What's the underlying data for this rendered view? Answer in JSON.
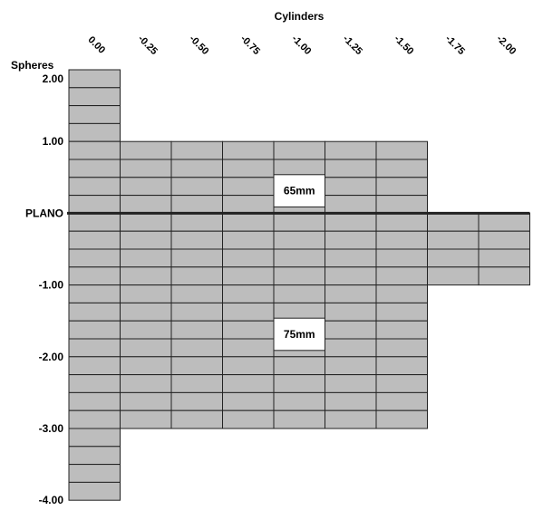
{
  "chart_data": {
    "type": "table",
    "title": "",
    "xlabel": "Cylinders",
    "ylabel": "Spheres",
    "cylinders": [
      "0.00",
      "-0.25",
      "-0.50",
      "-0.75",
      "-1.00",
      "-1.25",
      "-1.50",
      "-1.75",
      "-2.00"
    ],
    "sphere_labels": [
      "2.00",
      "1.00",
      "PLANO",
      "-1.00",
      "-2.00",
      "-3.00",
      "-4.00"
    ],
    "sphere_step": 0.25,
    "sphere_range": [
      -4.0,
      2.0
    ],
    "plano_line": 0.0,
    "availability": [
      {
        "cylinder": "0.00",
        "sphere_from": 2.0,
        "sphere_to": -4.0
      },
      {
        "cylinder": "-0.25",
        "sphere_from": 1.0,
        "sphere_to": -3.0
      },
      {
        "cylinder": "-0.50",
        "sphere_from": 1.0,
        "sphere_to": -3.0
      },
      {
        "cylinder": "-0.75",
        "sphere_from": 1.0,
        "sphere_to": -3.0
      },
      {
        "cylinder": "-1.00",
        "sphere_from": 1.0,
        "sphere_to": -3.0
      },
      {
        "cylinder": "-1.25",
        "sphere_from": 1.0,
        "sphere_to": -3.0
      },
      {
        "cylinder": "-1.50",
        "sphere_from": 1.0,
        "sphere_to": -3.0
      },
      {
        "cylinder": "-1.75",
        "sphere_from": 0.0,
        "sphere_to": -1.0
      },
      {
        "cylinder": "-2.00",
        "sphere_from": 0.0,
        "sphere_to": -1.0
      }
    ],
    "annotations": [
      {
        "text": "65mm",
        "cylinder": "-1.00",
        "sphere": 0.5
      },
      {
        "text": "75mm",
        "cylinder": "-1.00",
        "sphere": -1.5
      }
    ]
  }
}
